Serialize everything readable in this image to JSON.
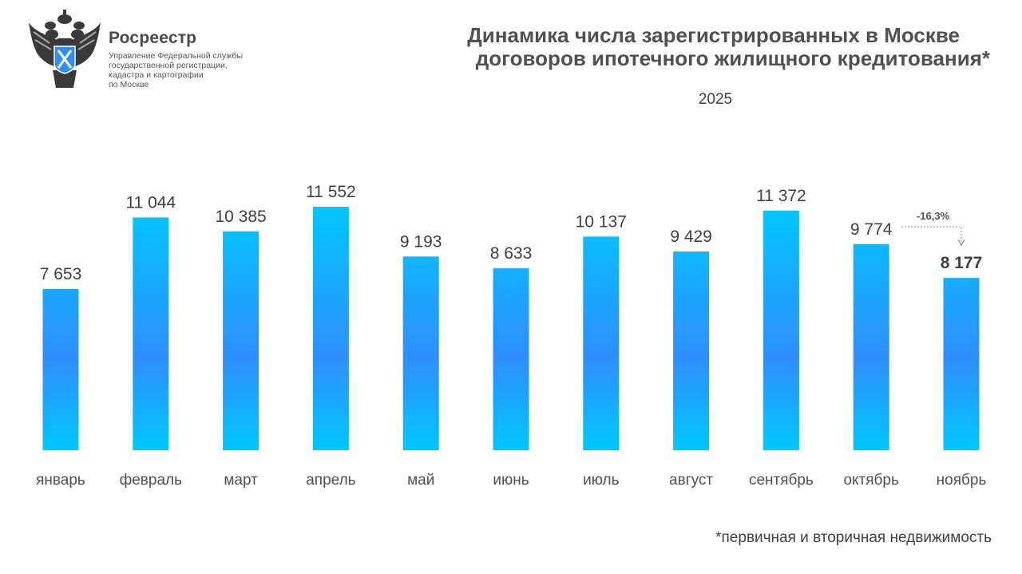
{
  "header": {
    "org_name": "Росреестр",
    "org_subtitle": [
      "Управление Федеральной службы",
      "государственной регистрации,",
      "кадастра и картографии",
      "по Москве"
    ],
    "title_lines": [
      "Динамика числа зарегистрированных в Москве",
      "договоров ипотечного жилищного кредитования*"
    ],
    "year": "2025"
  },
  "footnote": "*первичная и вторичная недвижимость",
  "colors": {
    "bar_light": "#00c8ff",
    "bar_dark": "#2f8eff",
    "text": "#404040",
    "emblem": "#3a3a3a",
    "shield": "#2f8eff"
  },
  "chart_data": {
    "type": "bar",
    "title": "Динамика числа зарегистрированных в Москве договоров ипотечного жилищного кредитования*",
    "subtitle": "2025",
    "xlabel": "",
    "ylabel": "",
    "categories": [
      "январь",
      "февраль",
      "март",
      "апрель",
      "май",
      "июнь",
      "июль",
      "август",
      "сентябрь",
      "октябрь",
      "ноябрь"
    ],
    "values": [
      7653,
      11044,
      10385,
      11552,
      9193,
      8633,
      10137,
      9429,
      11372,
      9774,
      8177
    ],
    "value_labels": [
      "7 653",
      "11 044",
      "10 385",
      "11 552",
      "9 193",
      "8 633",
      "10 137",
      "9 429",
      "11 372",
      "9 774",
      "8 177"
    ],
    "ylim": [
      0,
      12000
    ],
    "grid": false,
    "legend": "none",
    "annotation": {
      "from": "октябрь",
      "to": "ноябрь",
      "label": "-16,3%"
    }
  }
}
